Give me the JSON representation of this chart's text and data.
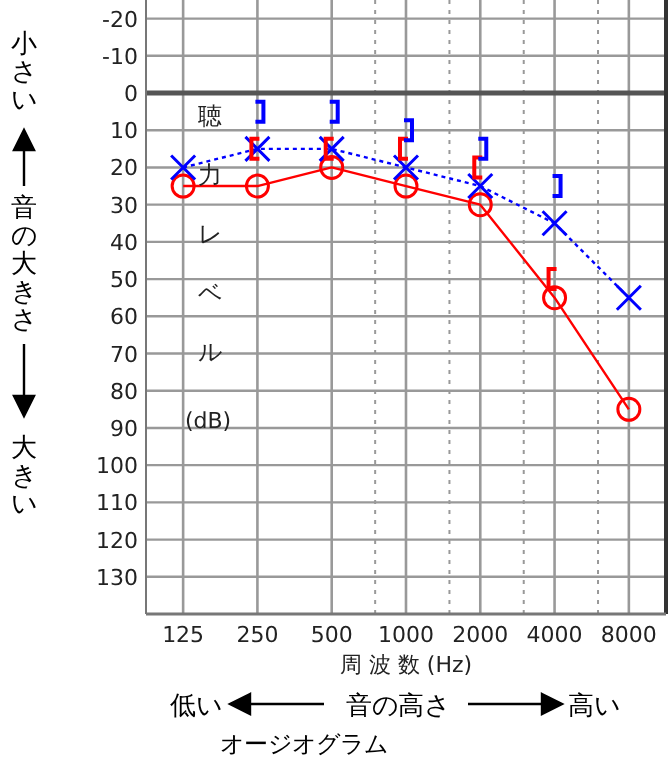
{
  "chart_data": {
    "type": "line",
    "title": "オージオグラム",
    "xlabel": "周 波 数 (Hz)",
    "ylabel": "聴力レベル(dB)",
    "annotations": [
      "小さい",
      "音の大きさ",
      "大きい",
      "低い",
      "音の高さ",
      "高い"
    ],
    "log": "x",
    "x": [
      125,
      250,
      500,
      1000,
      2000,
      4000,
      8000
    ],
    "xlim": [
      88.4,
      11314
    ],
    "xticks": [
      125,
      250,
      500,
      {
        "value": 750,
        "label": null
      },
      1000,
      {
        "value": 1500,
        "label": null
      },
      2000,
      {
        "value": 3000,
        "label": null
      },
      4000,
      {
        "value": 6000,
        "label": null
      },
      8000
    ],
    "ylim": [
      140,
      -25
    ],
    "yticks": [
      -20,
      -10,
      0,
      10,
      20,
      30,
      40,
      50,
      60,
      70,
      80,
      90,
      100,
      110,
      120,
      130
    ],
    "grid": true,
    "ref_lines": [
      {
        "axis": "y",
        "value": 0,
        "color": "#555555"
      }
    ],
    "series": [
      {
        "color": "#ff0000",
        "values": [
          25,
          25,
          20,
          25,
          30,
          55,
          85
        ],
        "marker": "circle",
        "line_style": "solid"
      },
      {
        "color": "#0000ff",
        "values": [
          20,
          15,
          15,
          20,
          25,
          35,
          55
        ],
        "marker": "cross",
        "line_style": "dotted"
      },
      {
        "type": "scatter",
        "color": "#ff0000",
        "x": [
          250,
          500,
          1000,
          2000,
          4000
        ],
        "values": [
          15,
          15,
          15,
          20,
          50
        ]
      },
      {
        "type": "scatter",
        "color": "#0000ff",
        "x": [
          250,
          500,
          1000,
          2000,
          4000
        ],
        "values": [
          5,
          5,
          10,
          15,
          25
        ]
      }
    ]
  }
}
